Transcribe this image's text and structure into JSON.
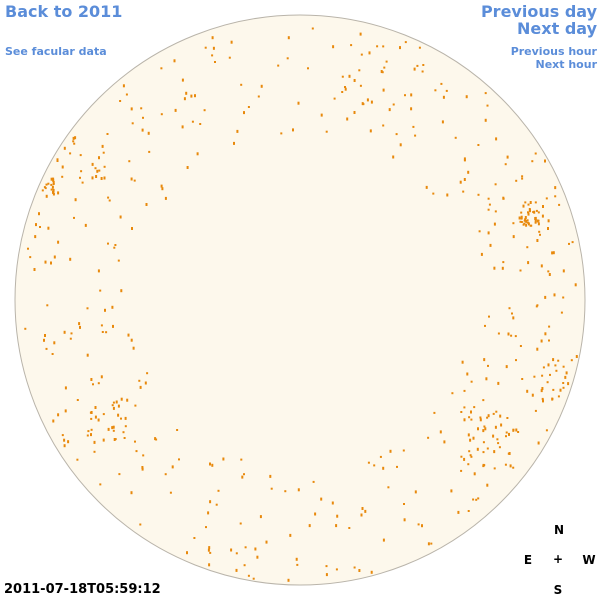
{
  "nav": {
    "back": "Back to 2011",
    "facular": "See facular data",
    "previous_day": "Previous day",
    "next_day": "Next day",
    "previous_hour": "Previous hour",
    "next_hour": "Next hour"
  },
  "compass": {
    "north": "N",
    "east": "E",
    "center": "+",
    "west": "W",
    "south": "S"
  },
  "timestamp": "2011-07-18T05:59:12"
}
